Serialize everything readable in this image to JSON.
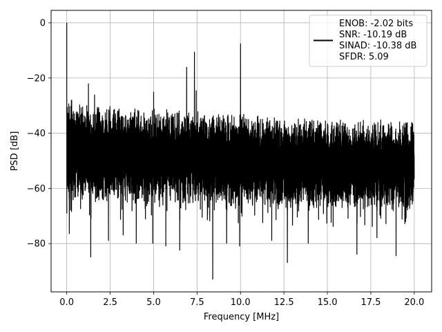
{
  "chart_data": {
    "type": "line",
    "title": "",
    "xlabel": "Frequency [MHz]",
    "ylabel": "PSD [dB]",
    "xlim": [
      -0.9,
      21.0
    ],
    "ylim": [
      -97.5,
      4.5
    ],
    "xticks": [
      0.0,
      2.5,
      5.0,
      7.5,
      10.0,
      12.5,
      15.0,
      17.5,
      20.0
    ],
    "xtick_labels": [
      "0.0",
      "2.5",
      "5.0",
      "7.5",
      "10.0",
      "12.5",
      "15.0",
      "17.5",
      "20.0"
    ],
    "yticks": [
      0,
      -20,
      -40,
      -60,
      -80
    ],
    "ytick_labels": [
      "0",
      "−20",
      "−40",
      "−60",
      "−80"
    ],
    "grid": true,
    "line_color": "#000000",
    "legend_position": "upper right",
    "legend_lines": [
      "ENOB: -2.02 bits",
      "SNR: -10.19 dB",
      "SINAD: -10.38 dB",
      "SFDR: 5.09"
    ],
    "noise_floor": {
      "x_range": [
        0.0,
        20.0
      ],
      "upper_envelope": [
        [
          0.0,
          -25
        ],
        [
          0.5,
          -29
        ],
        [
          3.0,
          -30
        ],
        [
          7.5,
          -31.5
        ],
        [
          12.5,
          -34
        ],
        [
          20.0,
          -35
        ]
      ],
      "lower_envelope": [
        [
          0.0,
          -65
        ],
        [
          0.5,
          -65
        ],
        [
          5.0,
          -66
        ],
        [
          10.0,
          -67
        ],
        [
          15.0,
          -68
        ],
        [
          20.0,
          -68
        ]
      ]
    },
    "spikes": [
      {
        "x": 0.0,
        "y": 0
      },
      {
        "x": 1.25,
        "y": -22
      },
      {
        "x": 1.6,
        "y": -26
      },
      {
        "x": 6.9,
        "y": -16
      },
      {
        "x": 7.35,
        "y": -10.5
      },
      {
        "x": 7.45,
        "y": -24.5
      },
      {
        "x": 10.0,
        "y": -7.5
      },
      {
        "x": 5.0,
        "y": -25
      }
    ],
    "dips": [
      {
        "x": 0.15,
        "y": -76.5
      },
      {
        "x": 1.38,
        "y": -85
      },
      {
        "x": 2.4,
        "y": -79
      },
      {
        "x": 3.25,
        "y": -77
      },
      {
        "x": 4.0,
        "y": -80
      },
      {
        "x": 4.95,
        "y": -80
      },
      {
        "x": 5.7,
        "y": -81
      },
      {
        "x": 6.5,
        "y": -82.5
      },
      {
        "x": 8.4,
        "y": -93
      },
      {
        "x": 9.2,
        "y": -80
      },
      {
        "x": 9.95,
        "y": -81
      },
      {
        "x": 11.8,
        "y": -79
      },
      {
        "x": 12.7,
        "y": -87
      },
      {
        "x": 13.9,
        "y": -80
      },
      {
        "x": 16.7,
        "y": -84
      },
      {
        "x": 17.85,
        "y": -78
      },
      {
        "x": 18.95,
        "y": -84.5
      }
    ]
  }
}
